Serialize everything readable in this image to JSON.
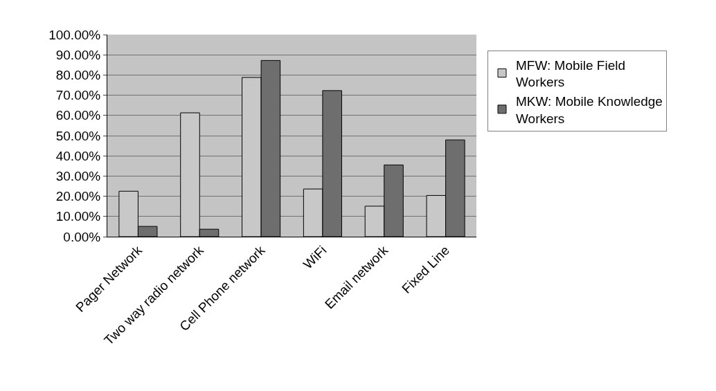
{
  "chart_data": {
    "type": "bar",
    "categories": [
      "Pager Network",
      "Two way radio network",
      "Cell Phone network",
      "WiFi",
      "Email network",
      "Fixed Line"
    ],
    "series": [
      {
        "name": "MFW: Mobile Field Workers",
        "color": "#c8c8c8",
        "values": [
          22.5,
          61.3,
          78.8,
          23.6,
          15.1,
          20.4
        ]
      },
      {
        "name": "MKW: Mobile Knowledge Workers",
        "color": "#6e6e6e",
        "values": [
          5.1,
          3.7,
          87.2,
          72.3,
          35.5,
          47.9
        ]
      }
    ],
    "ylim": [
      0,
      100
    ],
    "yticks": [
      {
        "value": 0,
        "label": "0.00%"
      },
      {
        "value": 10,
        "label": "10.00%"
      },
      {
        "value": 20,
        "label": "20.00%"
      },
      {
        "value": 30,
        "label": "30.00%"
      },
      {
        "value": 40,
        "label": "40.00%"
      },
      {
        "value": 50,
        "label": "50.00%"
      },
      {
        "value": 60,
        "label": "60.00%"
      },
      {
        "value": 70,
        "label": "70.00%"
      },
      {
        "value": 80,
        "label": "80.00%"
      },
      {
        "value": 90,
        "label": "90.00%"
      },
      {
        "value": 100,
        "label": "100.00%"
      }
    ],
    "grid": "y",
    "legend": "right"
  }
}
